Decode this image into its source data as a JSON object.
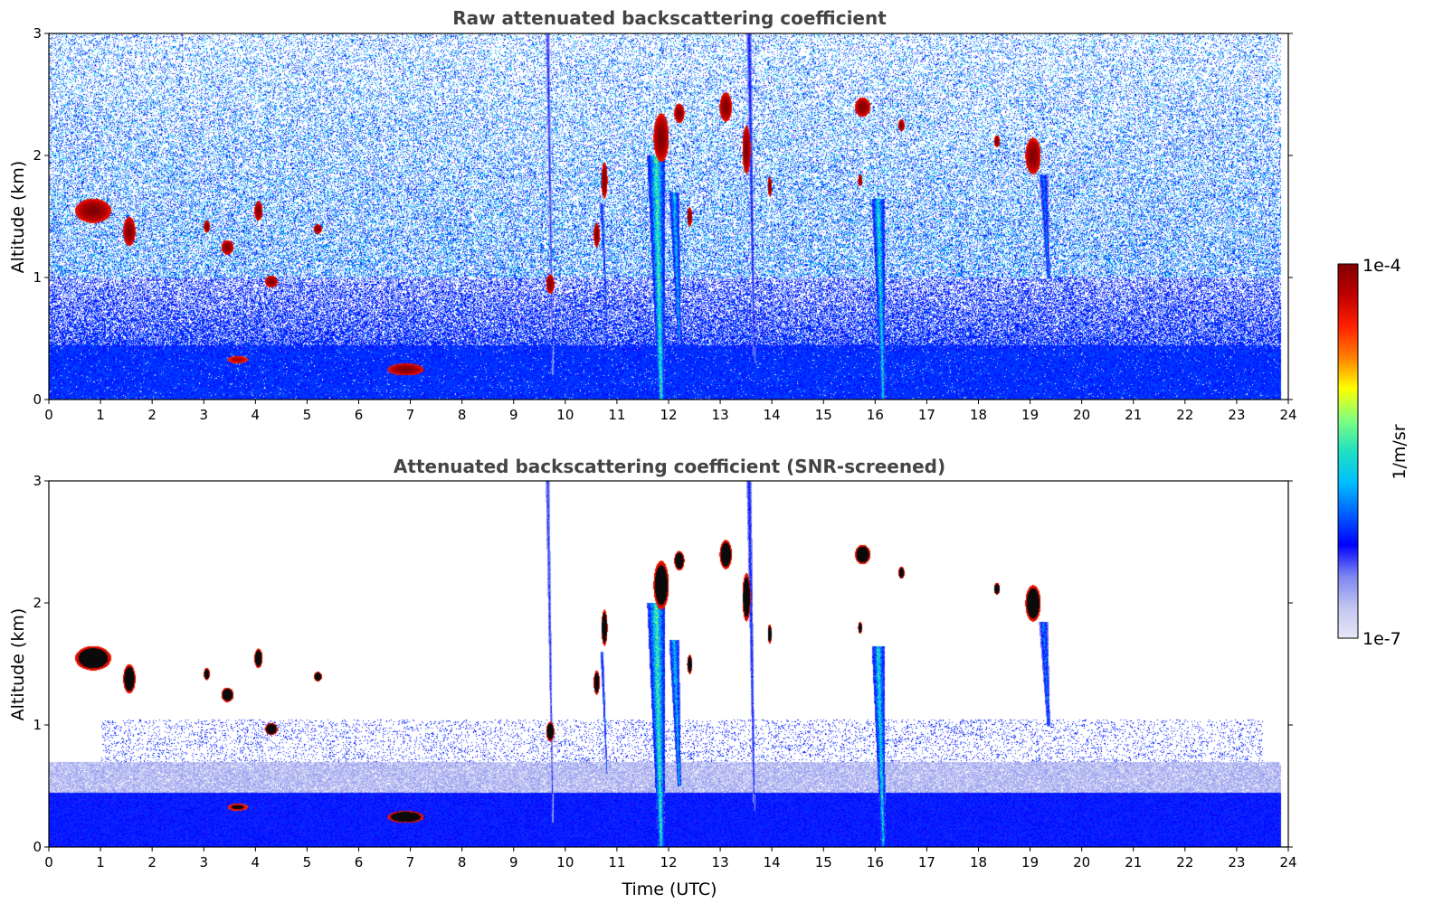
{
  "chart_data": [
    {
      "type": "heatmap",
      "title": "Raw attenuated backscattering coefficient",
      "xlabel": "",
      "ylabel": "Altitude (km)",
      "xlim": [
        0,
        24
      ],
      "ylim": [
        0,
        3
      ],
      "xticks": [
        "0",
        "1",
        "2",
        "3",
        "4",
        "5",
        "6",
        "7",
        "8",
        "9",
        "10",
        "11",
        "12",
        "13",
        "14",
        "15",
        "16",
        "17",
        "18",
        "19",
        "20",
        "21",
        "22",
        "23",
        "24"
      ],
      "yticks": [
        "0",
        "1",
        "2",
        "3"
      ],
      "screened": false,
      "features": [
        {
          "kind": "cloud",
          "t": 0.85,
          "alt": 1.55,
          "dt": 0.35,
          "dalt": 0.1,
          "intensity": 1.0
        },
        {
          "kind": "cloud",
          "t": 1.55,
          "alt": 1.38,
          "dt": 0.12,
          "dalt": 0.12,
          "intensity": 1.0
        },
        {
          "kind": "cloud",
          "t": 3.05,
          "alt": 1.42,
          "dt": 0.06,
          "dalt": 0.05,
          "intensity": 1.0
        },
        {
          "kind": "cloud",
          "t": 3.45,
          "alt": 1.25,
          "dt": 0.12,
          "dalt": 0.06,
          "intensity": 1.0
        },
        {
          "kind": "cloud",
          "t": 4.05,
          "alt": 1.55,
          "dt": 0.08,
          "dalt": 0.08,
          "intensity": 1.0
        },
        {
          "kind": "cloud",
          "t": 4.3,
          "alt": 0.97,
          "dt": 0.12,
          "dalt": 0.05,
          "intensity": 1.0
        },
        {
          "kind": "cloud",
          "t": 5.2,
          "alt": 1.4,
          "dt": 0.08,
          "dalt": 0.04,
          "intensity": 1.0
        },
        {
          "kind": "cloud",
          "t": 3.65,
          "alt": 0.33,
          "dt": 0.2,
          "dalt": 0.03,
          "intensity": 0.95
        },
        {
          "kind": "cloud",
          "t": 6.9,
          "alt": 0.25,
          "dt": 0.35,
          "dalt": 0.05,
          "intensity": 1.0
        },
        {
          "kind": "cloud",
          "t": 9.7,
          "alt": 0.95,
          "dt": 0.08,
          "dalt": 0.08,
          "intensity": 1.0
        },
        {
          "kind": "cloud",
          "t": 10.6,
          "alt": 1.35,
          "dt": 0.06,
          "dalt": 0.1,
          "intensity": 1.0
        },
        {
          "kind": "cloud",
          "t": 10.75,
          "alt": 1.8,
          "dt": 0.06,
          "dalt": 0.15,
          "intensity": 1.0
        },
        {
          "kind": "cloud",
          "t": 11.85,
          "alt": 2.15,
          "dt": 0.15,
          "dalt": 0.2,
          "intensity": 1.0
        },
        {
          "kind": "cloud",
          "t": 12.2,
          "alt": 2.35,
          "dt": 0.1,
          "dalt": 0.08,
          "intensity": 1.0
        },
        {
          "kind": "cloud",
          "t": 12.4,
          "alt": 1.5,
          "dt": 0.05,
          "dalt": 0.08,
          "intensity": 1.0
        },
        {
          "kind": "cloud",
          "t": 13.1,
          "alt": 2.4,
          "dt": 0.12,
          "dalt": 0.12,
          "intensity": 1.0
        },
        {
          "kind": "cloud",
          "t": 13.5,
          "alt": 2.05,
          "dt": 0.08,
          "dalt": 0.2,
          "intensity": 1.0
        },
        {
          "kind": "cloud",
          "t": 13.95,
          "alt": 1.75,
          "dt": 0.04,
          "dalt": 0.08,
          "intensity": 1.0
        },
        {
          "kind": "cloud",
          "t": 15.75,
          "alt": 2.4,
          "dt": 0.15,
          "dalt": 0.08,
          "intensity": 1.0
        },
        {
          "kind": "cloud",
          "t": 15.7,
          "alt": 1.8,
          "dt": 0.04,
          "dalt": 0.05,
          "intensity": 1.0
        },
        {
          "kind": "cloud",
          "t": 16.5,
          "alt": 2.25,
          "dt": 0.06,
          "dalt": 0.05,
          "intensity": 1.0
        },
        {
          "kind": "cloud",
          "t": 18.35,
          "alt": 2.12,
          "dt": 0.06,
          "dalt": 0.05,
          "intensity": 1.0
        },
        {
          "kind": "cloud",
          "t": 19.05,
          "alt": 2.0,
          "dt": 0.15,
          "dalt": 0.15,
          "intensity": 1.0
        },
        {
          "kind": "fallstreak",
          "t": 11.75,
          "top": 2.0,
          "bottom": 0.0,
          "width": 0.35,
          "intensity": 0.65
        },
        {
          "kind": "fallstreak",
          "t": 12.1,
          "top": 1.7,
          "bottom": 0.5,
          "width": 0.2,
          "intensity": 0.55
        },
        {
          "kind": "fallstreak",
          "t": 16.05,
          "top": 1.65,
          "bottom": 0.0,
          "width": 0.25,
          "intensity": 0.6
        },
        {
          "kind": "fallstreak",
          "t": 19.25,
          "top": 1.85,
          "bottom": 1.0,
          "width": 0.18,
          "intensity": 0.45
        },
        {
          "kind": "fallstreak",
          "t": 10.7,
          "top": 1.6,
          "bottom": 0.6,
          "width": 0.06,
          "intensity": 0.45
        },
        {
          "kind": "fallstreak",
          "t": 13.55,
          "top": 3.0,
          "bottom": 0.3,
          "width": 0.1,
          "intensity": 0.35
        },
        {
          "kind": "fallstreak",
          "t": 9.65,
          "top": 3.0,
          "bottom": 0.2,
          "width": 0.08,
          "intensity": 0.3
        }
      ]
    },
    {
      "type": "heatmap",
      "title": "Attenuated backscattering coefficient (SNR-screened)",
      "xlabel": "Time (UTC)",
      "ylabel": "Altitude (km)",
      "xlim": [
        0,
        24
      ],
      "ylim": [
        0,
        3
      ],
      "xticks": [
        "0",
        "1",
        "2",
        "3",
        "4",
        "5",
        "6",
        "7",
        "8",
        "9",
        "10",
        "11",
        "12",
        "13",
        "14",
        "15",
        "16",
        "17",
        "18",
        "19",
        "20",
        "21",
        "22",
        "23",
        "24"
      ],
      "yticks": [
        "0",
        "1",
        "2",
        "3"
      ],
      "screened": true
    }
  ],
  "colorbar": {
    "label": "1/m/sr",
    "max_label": "1e-4",
    "min_label": "1e-7",
    "scale": "log",
    "range": [
      1e-07,
      0.0001
    ],
    "colormap": "jet",
    "colors": [
      "#e8e8f8",
      "#c0c4f0",
      "#7c84f0",
      "#0000ff",
      "#0060ff",
      "#00c0ff",
      "#20e0c0",
      "#80ff80",
      "#ffff00",
      "#ff8000",
      "#ff2000",
      "#c00000",
      "#800000"
    ]
  }
}
